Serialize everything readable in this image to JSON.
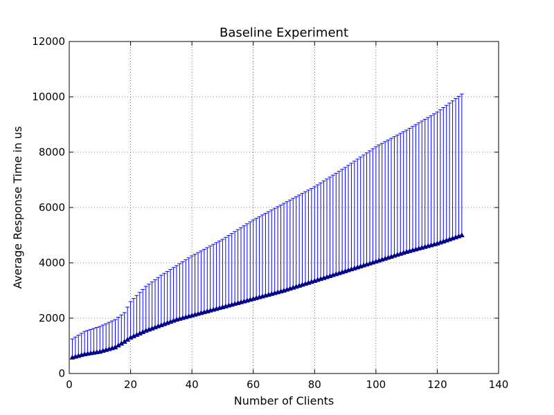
{
  "chart_data": {
    "type": "line",
    "title": "Baseline Experiment",
    "xlabel": "Number of Clients",
    "ylabel": "Average Response Time in us",
    "xlim": [
      0,
      140
    ],
    "ylim": [
      0,
      12000
    ],
    "xticks": [
      0,
      20,
      40,
      60,
      80,
      100,
      120,
      140
    ],
    "yticks": [
      0,
      2000,
      4000,
      6000,
      8000,
      10000,
      12000
    ],
    "xtick_labels": [
      "0",
      "20",
      "40",
      "60",
      "80",
      "100",
      "120",
      "140"
    ],
    "ytick_labels": [
      "0",
      "2000",
      "4000",
      "6000",
      "8000",
      "10000",
      "12000"
    ],
    "grid": true,
    "color": "#00008b",
    "errorbar_color": "#0000ff",
    "marker": "triangle-up",
    "series_description": "mean response time with upper error bars, one point per client count",
    "x_range": [
      1,
      128
    ],
    "anchor_points": {
      "x": [
        1,
        5,
        10,
        15,
        18,
        20,
        25,
        30,
        35,
        40,
        50,
        60,
        70,
        80,
        90,
        100,
        110,
        120,
        128
      ],
      "mean": [
        580,
        700,
        790,
        950,
        1150,
        1300,
        1550,
        1750,
        1950,
        2100,
        2400,
        2700,
        3000,
        3350,
        3700,
        4050,
        4400,
        4700,
        5000
      ],
      "upper": [
        1250,
        1520,
        1700,
        1950,
        2200,
        2600,
        3150,
        3550,
        3900,
        4250,
        4850,
        5550,
        6150,
        6750,
        7450,
        8200,
        8800,
        9450,
        10100
      ]
    }
  }
}
